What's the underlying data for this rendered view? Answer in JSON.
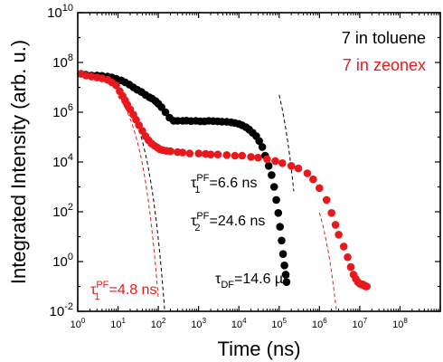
{
  "chart_data": {
    "type": "scatter",
    "title": "",
    "xlabel": "Time (ns)",
    "ylabel": "Integrated Intensity (arb. u.)",
    "xscale": "log",
    "yscale": "log",
    "xlim": [
      1,
      1000000000
    ],
    "ylim": [
      0.01,
      10000000000
    ],
    "x_ticks": [
      {
        "value": 1,
        "base": "10",
        "exp": "0"
      },
      {
        "value": 10,
        "base": "10",
        "exp": "1"
      },
      {
        "value": 100,
        "base": "10",
        "exp": "2"
      },
      {
        "value": 1000,
        "base": "10",
        "exp": "3"
      },
      {
        "value": 10000,
        "base": "10",
        "exp": "4"
      },
      {
        "value": 100000,
        "base": "10",
        "exp": "5"
      },
      {
        "value": 1000000,
        "base": "10",
        "exp": "6"
      },
      {
        "value": 10000000,
        "base": "10",
        "exp": "7"
      },
      {
        "value": 100000000,
        "base": "10",
        "exp": "8"
      }
    ],
    "y_ticks": [
      {
        "value": 0.01,
        "base": "10",
        "exp": "-2"
      },
      {
        "value": 1,
        "base": "10",
        "exp": "0"
      },
      {
        "value": 100,
        "base": "10",
        "exp": "2"
      },
      {
        "value": 10000,
        "base": "10",
        "exp": "4"
      },
      {
        "value": 1000000,
        "base": "10",
        "exp": "6"
      },
      {
        "value": 100000000,
        "base": "10",
        "exp": "8"
      },
      {
        "value": 10000000000,
        "base": "10",
        "exp": "10"
      }
    ],
    "grid": false,
    "legend_position": "top-right",
    "series": [
      {
        "name": "7 in toluene",
        "color": "#000000",
        "x": [
          1.2,
          1.6,
          2.2,
          3.0,
          4.0,
          5.5,
          7.0,
          9.0,
          12,
          15,
          19,
          24,
          30,
          38,
          48,
          60,
          70,
          85,
          100,
          120,
          150,
          190,
          240,
          300,
          400,
          500,
          650,
          850,
          1100,
          1400,
          1800,
          2300,
          3000,
          3800,
          5000,
          6500,
          8000,
          10000,
          12000,
          15000,
          18000,
          22000,
          27000,
          32000,
          38000,
          45000,
          55000,
          65000,
          75000,
          85000,
          95000,
          105000,
          115000,
          125000,
          135000,
          145000,
          152000
        ],
        "y": [
          35000000,
          32000000,
          30000000,
          30000000,
          29000000,
          27000000,
          25000000,
          22000000,
          19000000,
          16000000,
          13000000,
          10000000,
          8000000,
          6500000,
          5000000,
          4000000,
          3500000,
          2800000,
          2200000,
          1600000,
          1000000,
          600000,
          450000,
          450000,
          450000,
          460000,
          440000,
          450000,
          430000,
          430000,
          450000,
          440000,
          430000,
          420000,
          410000,
          390000,
          370000,
          340000,
          300000,
          250000,
          200000,
          150000,
          110000,
          70000,
          40000,
          18000,
          7000,
          3000,
          1000,
          300,
          90,
          25,
          7,
          2,
          0.7,
          0.3,
          0.15
        ]
      },
      {
        "name": "7 in zeonex",
        "color": "#e8191c",
        "x": [
          1.2,
          1.6,
          2.2,
          3.0,
          4.0,
          5.5,
          7.0,
          9.0,
          11,
          13,
          15,
          17,
          20,
          24,
          28,
          33,
          40,
          48,
          57,
          68,
          80,
          95,
          110,
          130,
          160,
          200,
          300,
          400,
          600,
          1000,
          1500,
          2000,
          3000,
          5000,
          8000,
          12000,
          20000,
          30000,
          50000,
          80000,
          120000,
          200000,
          300000,
          500000,
          700000,
          1000000,
          1500000,
          2000000,
          2500000,
          3000000,
          4000000,
          5000000,
          6000000,
          7000000,
          8000000,
          9000000,
          10000000,
          11000000,
          12000000,
          13000000,
          14000000,
          15000000
        ],
        "y": [
          35000000,
          30000000,
          27000000,
          25000000,
          23000000,
          20000000,
          16000000,
          12000000,
          7000000,
          4500000,
          3000000,
          2000000,
          1300000,
          800000,
          500000,
          300000,
          180000,
          110000,
          75000,
          55000,
          45000,
          38000,
          32000,
          30000,
          28000,
          27000,
          25000,
          24000,
          22000,
          22000,
          21000,
          20000,
          20000,
          19000,
          18000,
          18000,
          16000,
          15000,
          13000,
          11000,
          9000,
          7000,
          5500,
          3500,
          2000,
          900,
          300,
          90,
          30,
          12,
          4,
          1.5,
          0.6,
          0.3,
          0.2,
          0.15,
          0.13,
          0.12,
          0.12,
          0.11,
          0.1,
          0.1
        ]
      }
    ],
    "fits": [
      {
        "name": "fit-toluene-pf",
        "color": "#000000",
        "amplitude": 30000000,
        "tau": 6.6,
        "x_from": 10,
        "x_to": 200
      },
      {
        "name": "fit-toluene-df",
        "color": "#000000",
        "amplitude": 4700000000,
        "tau": 14600,
        "x_from": 100000,
        "x_to": 230000
      },
      {
        "name": "fit-zeonex-pf",
        "color": "#e8191c",
        "amplitude": 35000000,
        "tau": 4.8,
        "x_from": 10,
        "x_to": 100
      },
      {
        "name": "fit-zeonex-df",
        "color": "#e8191c",
        "amplitude": 24000,
        "tau": 180000,
        "x_from": 1000000,
        "x_to": 4000000
      }
    ],
    "annotations": [
      {
        "name": "tau1-pf-toluene",
        "color": "#000000",
        "sym": "τ",
        "sub": "1",
        "sup": "PF",
        "rest": "=6.6 ns"
      },
      {
        "name": "tau2-pf-toluene",
        "color": "#000000",
        "sym": "τ",
        "sub": "2",
        "sup": "PF",
        "rest": "=24.6 ns"
      },
      {
        "name": "tau1-pf-zeonex",
        "color": "#e8191c",
        "sym": "τ",
        "sub": "1",
        "sup": "PF",
        "rest": "=4.8 ns"
      },
      {
        "name": "tau-df-toluene",
        "color": "#000000",
        "sym": "τ",
        "sub": "DF",
        "sup": "",
        "rest": "=14.6 µs"
      }
    ]
  }
}
